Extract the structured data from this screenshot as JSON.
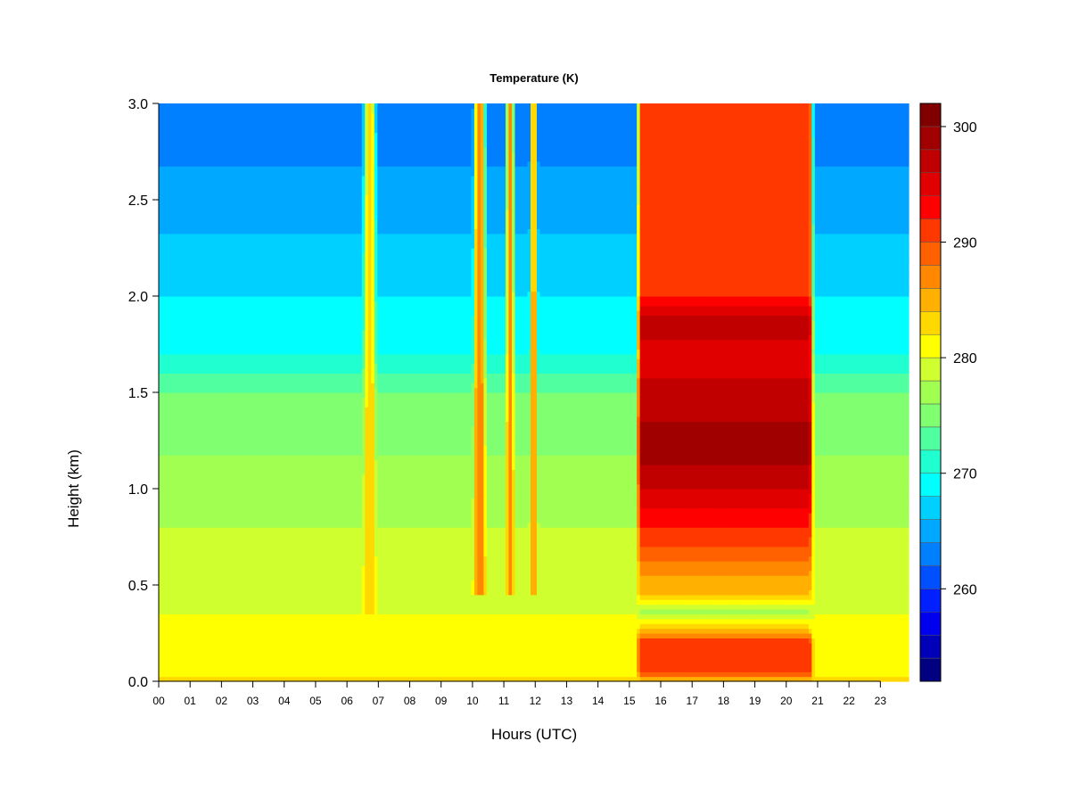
{
  "chart_data": {
    "type": "heatmap",
    "title": "Temperature (K)",
    "xlabel": "Hours (UTC)",
    "ylabel": "Height (km)",
    "xlim": [
      0,
      23.9
    ],
    "ylim": [
      0,
      3.0
    ],
    "x_ticks": [
      "00",
      "01",
      "02",
      "03",
      "04",
      "05",
      "06",
      "07",
      "08",
      "09",
      "10",
      "11",
      "12",
      "13",
      "14",
      "15",
      "16",
      "17",
      "18",
      "19",
      "20",
      "21",
      "22",
      "23"
    ],
    "y_ticks": [
      "0.0",
      "0.5",
      "1.0",
      "1.5",
      "2.0",
      "2.5",
      "3.0"
    ],
    "colorbar": {
      "range": [
        252,
        302
      ],
      "ticks": [
        "260",
        "270",
        "280",
        "290",
        "300"
      ],
      "levels": 25,
      "palette": [
        "#000080",
        "#0000b8",
        "#0000ee",
        "#0020ff",
        "#0050ff",
        "#0080ff",
        "#00a8ff",
        "#00d0ff",
        "#00ffff",
        "#20ffd0",
        "#50ffa0",
        "#80ff70",
        "#a0ff50",
        "#d0ff30",
        "#ffff00",
        "#ffd800",
        "#ffb000",
        "#ff8800",
        "#ff6000",
        "#ff3800",
        "#ff0000",
        "#e00000",
        "#c00000",
        "#a00000",
        "#800000"
      ]
    },
    "background_profile": {
      "heights_km": [
        0.0,
        0.05,
        0.2,
        0.5,
        1.0,
        1.5,
        1.7,
        2.0,
        2.5,
        3.0
      ],
      "temperature_K": [
        283,
        281,
        280.5,
        279.5,
        277,
        274,
        270,
        268,
        265,
        262
      ]
    },
    "warm_columns": [
      {
        "start_hour": 6.5,
        "end_hour": 6.95,
        "min_height_km": 0.4,
        "peak_temperature_K": 284
      },
      {
        "start_hour": 10.0,
        "end_hour": 10.45,
        "min_height_km": 0.5,
        "peak_temperature_K": 288
      },
      {
        "start_hour": 11.05,
        "end_hour": 11.35,
        "min_height_km": 0.5,
        "peak_temperature_K": 287
      },
      {
        "start_hour": 11.8,
        "end_hour": 12.1,
        "min_height_km": 0.5,
        "peak_temperature_K": 286
      }
    ],
    "warm_block": {
      "start_hour": 15.2,
      "end_hour": 20.9,
      "profile": {
        "heights_km": [
          0.0,
          0.05,
          0.2,
          0.25,
          0.35,
          0.45,
          0.55,
          0.7,
          1.0,
          1.2,
          1.5,
          1.7,
          1.85,
          2.0,
          2.2,
          2.6,
          3.0
        ],
        "temperature_K": [
          282,
          291,
          292,
          285,
          277,
          284,
          286,
          290,
          296,
          299,
          297,
          294,
          298,
          292,
          291,
          291,
          291
        ]
      }
    }
  }
}
